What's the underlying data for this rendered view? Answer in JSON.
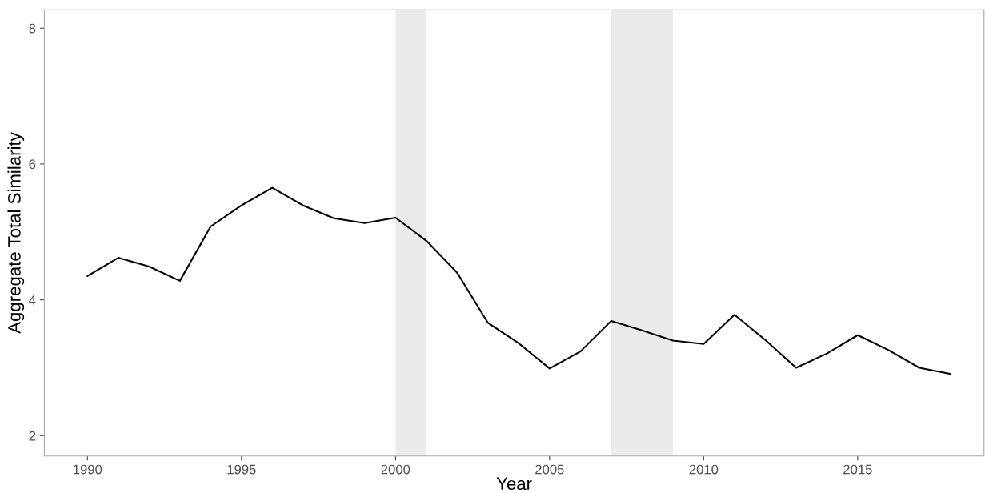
{
  "chart_data": {
    "type": "line",
    "xlabel": "Year",
    "ylabel": "Aggregate Total Similarity",
    "x": [
      1990,
      1991,
      1992,
      1993,
      1994,
      1995,
      1996,
      1997,
      1998,
      1999,
      2000,
      2001,
      2002,
      2003,
      2004,
      2005,
      2006,
      2007,
      2008,
      2009,
      2010,
      2011,
      2012,
      2013,
      2014,
      2015,
      2016,
      2017,
      2018
    ],
    "series": [
      {
        "color": "#000000",
        "values": [
          4.35,
          4.62,
          4.49,
          4.28,
          5.08,
          5.39,
          5.65,
          5.39,
          5.2,
          5.13,
          5.21,
          4.87,
          4.4,
          3.66,
          3.36,
          2.99,
          3.24,
          3.69,
          3.55,
          3.4,
          3.35,
          3.78,
          3.41,
          3.0,
          3.21,
          3.48,
          3.26,
          3.0,
          2.91
        ]
      }
    ],
    "xlim": [
      1988.6,
      2019.1
    ],
    "ylim": [
      1.7,
      8.27
    ],
    "xticks": [
      1990,
      1995,
      2000,
      2005,
      2010,
      2015
    ],
    "yticks": [
      2,
      4,
      6,
      8
    ],
    "bands": [
      {
        "axis": "x",
        "from": 2000,
        "to": 2001,
        "color": "#ebebeb"
      },
      {
        "axis": "x",
        "from": 2007,
        "to": 2009,
        "color": "#ebebeb"
      }
    ],
    "grid": false,
    "legend": false,
    "marker": "none",
    "line_style": "solid"
  }
}
